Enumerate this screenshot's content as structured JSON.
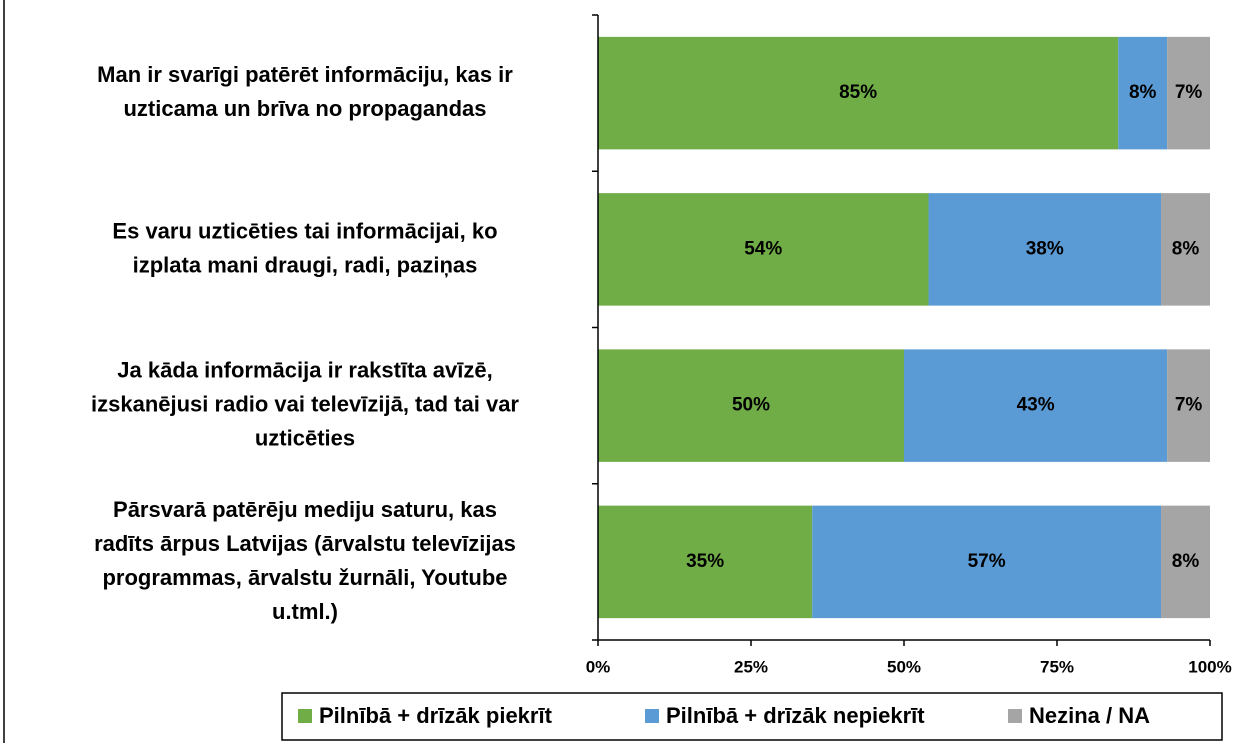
{
  "chart_data": {
    "type": "stacked_barh",
    "categories": [
      "Man ir svarīgi patērēt informāciju, kas ir\nuzticama un brīva no propagandas",
      "Es varu uzticēties tai informācijai, ko\nizplata mani draugi, radi, paziņas",
      "Ja kāda informācija ir rakstīta avīzē,\nizskanējusi radio vai televīzijā, tad tai var\nuzticēties",
      "Pārsvarā patērēju mediju saturu, kas\nradīts ārpus Latvijas (ārvalstu televīzijas\nprogrammas, ārvalstu žurnāli, Youtube\nu.tml.)"
    ],
    "series": [
      {
        "name": "Pilnībā + drīzāk piekrīt",
        "color": "#70ad47",
        "values": [
          85,
          54,
          50,
          35
        ],
        "value_labels": [
          "85%",
          "54%",
          "50%",
          "35%"
        ]
      },
      {
        "name": "Pilnībā + drīzāk nepiekrīt",
        "color": "#5b9bd5",
        "values": [
          8,
          38,
          43,
          57
        ],
        "value_labels": [
          "8%",
          "38%",
          "43%",
          "57%"
        ]
      },
      {
        "name": "Nezina / NA",
        "color": "#a5a5a5",
        "values": [
          7,
          8,
          7,
          8
        ],
        "value_labels": [
          "7%",
          "8%",
          "7%",
          "8%"
        ]
      }
    ],
    "xlim": [
      0,
      100
    ],
    "xticks": [
      {
        "value": 0,
        "label": "0%"
      },
      {
        "value": 25,
        "label": "25%"
      },
      {
        "value": 50,
        "label": "50%"
      },
      {
        "value": 75,
        "label": "75%"
      },
      {
        "value": 100,
        "label": "100%"
      }
    ],
    "legend": "bottom"
  }
}
